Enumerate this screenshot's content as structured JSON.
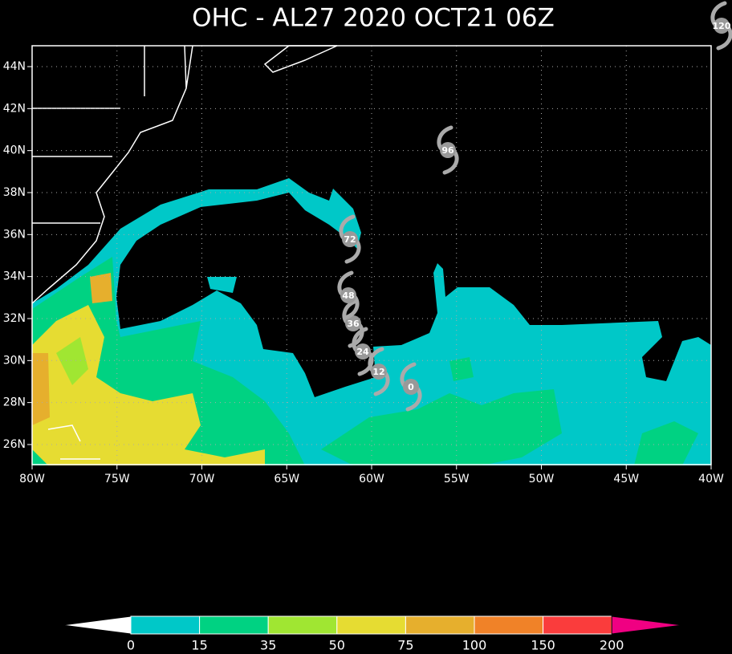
{
  "title": "OHC - AL27 2020 OCT21 06Z",
  "map": {
    "longitude_labels": [
      "80W",
      "75W",
      "70W",
      "65W",
      "60W",
      "55W",
      "50W",
      "45W",
      "40W"
    ],
    "latitude_labels": [
      "44N",
      "42N",
      "40N",
      "38N",
      "36N",
      "34N",
      "32N",
      "30N",
      "28N",
      "26N"
    ],
    "track_labels": [
      "0",
      "12",
      "24",
      "36",
      "48",
      "72",
      "96",
      "120"
    ]
  },
  "colorbar": {
    "labels": [
      "0",
      "15",
      "35",
      "50",
      "75",
      "100",
      "150",
      "200"
    ],
    "colors": [
      "#ffffff",
      "#00c8c8",
      "#00d282",
      "#a0e632",
      "#e6dc32",
      "#e6af2d",
      "#f08228",
      "#fa3c3c",
      "#f00082"
    ]
  }
}
